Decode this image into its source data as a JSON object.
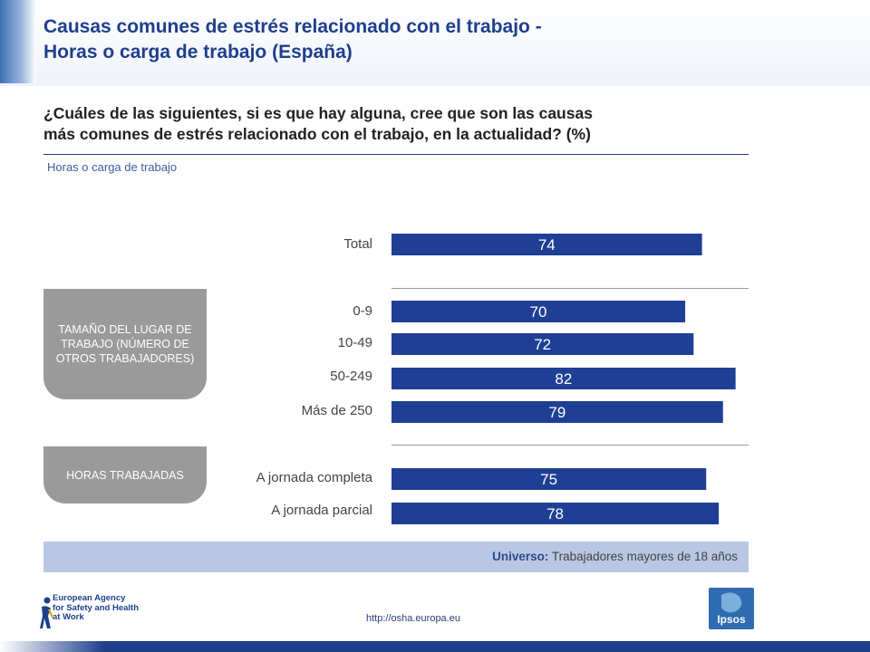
{
  "header": {
    "title_line1": "Causas comunes de estrés relacionado con el trabajo -",
    "title_line2": "Horas o carga de trabajo (España)",
    "question_line1": "¿Cuáles de las siguientes, si es que hay alguna, cree que son las causas",
    "question_line2": "más comunes de estrés relacionado con el trabajo, en la actualidad? (%)",
    "subtitle": "Horas o carga de trabajo"
  },
  "groups": {
    "size": "TAMAÑO DEL LUGAR DE TRABAJO (NÚMERO DE OTROS TRABAJADORES)",
    "hours": "HORAS TRABAJADAS"
  },
  "chart_data": {
    "type": "bar",
    "orientation": "horizontal",
    "categories": [
      "Total",
      "0-9",
      "10-49",
      "50-249",
      "Más de 250",
      "A jornada completa",
      "A jornada parcial"
    ],
    "values": [
      74,
      70,
      72,
      82,
      79,
      75,
      78
    ],
    "bar_color": "#1f3f95",
    "label_color": "#ffffff",
    "xlim": [
      0,
      100
    ]
  },
  "footer": {
    "universe_label": "Universo:",
    "universe_text": " Trabajadores mayores de 18 años",
    "url": "http://osha.europa.eu",
    "osha_logo_line1": "European Agency",
    "osha_logo_line2": "for Safety and Health",
    "osha_logo_line3": "at Work",
    "ipsos_logo": "Ipsos"
  }
}
